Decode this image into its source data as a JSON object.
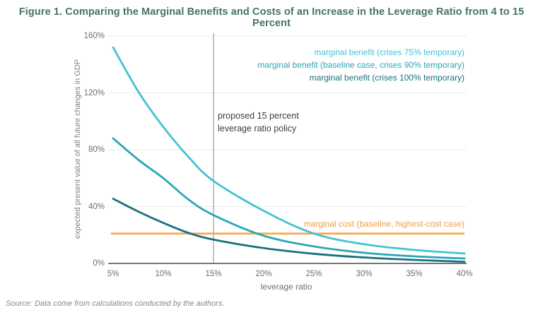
{
  "source_note": "Source: Data come from calculations conducted by the authors.",
  "colors": {
    "title_green": "#457465",
    "grid": "#e8eaea",
    "axis": "#4a4a4a",
    "policy_line": "#8a8a8a",
    "benefit_75": "#44c2d3",
    "benefit_90": "#2aa6b6",
    "benefit_100": "#19707f",
    "cost_orange": "#f6a750",
    "cost_label_orange": "#ef9d45"
  },
  "chart_data": {
    "type": "line",
    "title": "Figure 1. Comparing the Marginal Benefits and Costs of an Increase in the Leverage Ratio from 4 to 15 Percent",
    "xlabel": "leverage ratio",
    "ylabel": "expected present value of all future changes in GDP",
    "x": [
      5,
      7.5,
      10,
      12.5,
      15,
      20,
      25,
      30,
      35,
      40
    ],
    "x_ticks": [
      5,
      10,
      15,
      20,
      25,
      30,
      35,
      40
    ],
    "x_tick_labels": [
      "5%",
      "10%",
      "15%",
      "20%",
      "25%",
      "30%",
      "35%",
      "40%"
    ],
    "y_ticks": [
      0,
      40,
      80,
      120,
      160
    ],
    "y_tick_labels": [
      "0%",
      "40%",
      "80%",
      "120%",
      "160%"
    ],
    "xlim": [
      5,
      40
    ],
    "ylim": [
      0,
      160
    ],
    "grid": "horizontal",
    "legend_position": "top-right",
    "series": [
      {
        "name": "marginal benefit (crises 75% temporary)",
        "role": "benefit",
        "color": "#44c2d3",
        "values": [
          152,
          121,
          96,
          75,
          58,
          37,
          21,
          13.5,
          9.5,
          7
        ]
      },
      {
        "name": "marginal benefit (baseline case, crises 90% temporary)",
        "role": "benefit",
        "color": "#2aa6b6",
        "values": [
          88,
          73,
          60,
          45,
          34,
          19.5,
          12,
          7.5,
          5,
          3.5
        ]
      },
      {
        "name": "marginal benefit (crises 100% temporary)",
        "role": "benefit",
        "color": "#19707f",
        "values": [
          45.5,
          36.5,
          28.5,
          21.5,
          16.8,
          10.8,
          6.8,
          4.2,
          2.5,
          1.2
        ]
      },
      {
        "name": "marginal cost (baseline, highest-cost case)",
        "role": "cost",
        "color": "#f6a750",
        "values": [
          21,
          21,
          21,
          21,
          21,
          21,
          21,
          21,
          21,
          21
        ]
      }
    ],
    "annotation": {
      "x": 15,
      "lines": [
        "proposed 15 percent",
        "leverage ratio policy"
      ]
    }
  }
}
